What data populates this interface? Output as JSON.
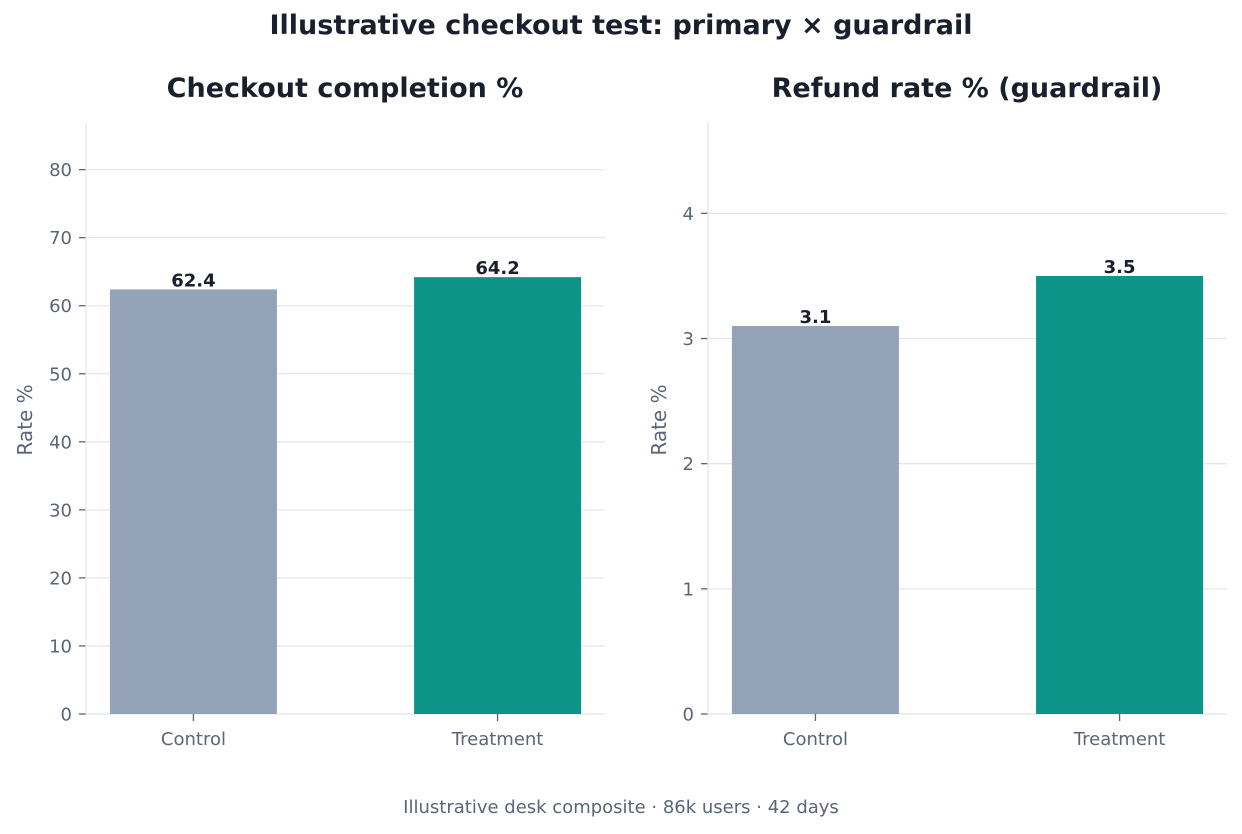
{
  "title": "Illustrative checkout test: primary × guardrail",
  "footer": "Illustrative desk composite · 86k users · 42 days",
  "chart_data": [
    {
      "type": "bar",
      "title": "Checkout completion %",
      "ylabel": "Rate %",
      "xlabel": "",
      "categories": [
        "Control",
        "Treatment"
      ],
      "values": [
        62.4,
        64.2
      ],
      "data_labels": [
        "62.4",
        "64.2"
      ],
      "colors": [
        "#94a3b8",
        "#0d9488"
      ],
      "ylim": [
        0,
        87
      ],
      "yticks": [
        0,
        10,
        20,
        30,
        40,
        50,
        60,
        70,
        80
      ],
      "grid": true
    },
    {
      "type": "bar",
      "title": "Refund rate % (guardrail)",
      "ylabel": "Rate %",
      "xlabel": "",
      "categories": [
        "Control",
        "Treatment"
      ],
      "values": [
        3.1,
        3.5
      ],
      "data_labels": [
        "3.1",
        "3.5"
      ],
      "colors": [
        "#94a3b8",
        "#0d9488"
      ],
      "ylim": [
        0,
        4.73
      ],
      "yticks": [
        0,
        1,
        2,
        3,
        4
      ],
      "grid": true
    }
  ]
}
